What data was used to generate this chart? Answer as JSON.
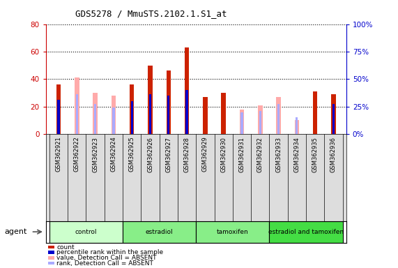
{
  "title": "GDS5278 / MmuSTS.2102.1.S1_at",
  "samples": [
    "GSM362921",
    "GSM362922",
    "GSM362923",
    "GSM362924",
    "GSM362925",
    "GSM362926",
    "GSM362927",
    "GSM362928",
    "GSM362929",
    "GSM362930",
    "GSM362931",
    "GSM362932",
    "GSM362933",
    "GSM362934",
    "GSM362935",
    "GSM362936"
  ],
  "group_defs": [
    {
      "label": "control",
      "start": 0,
      "end": 3,
      "color": "#ccffcc"
    },
    {
      "label": "estradiol",
      "start": 4,
      "end": 7,
      "color": "#88ee88"
    },
    {
      "label": "tamoxifen",
      "start": 8,
      "end": 11,
      "color": "#88ee88"
    },
    {
      "label": "estradiol and tamoxifen",
      "start": 12,
      "end": 15,
      "color": "#44dd44"
    }
  ],
  "count_red": [
    36,
    0,
    0,
    0,
    36,
    50,
    46,
    63,
    27,
    30,
    0,
    0,
    0,
    0,
    31,
    29
  ],
  "count_pink": [
    0,
    41,
    30,
    28,
    0,
    0,
    0,
    0,
    0,
    0,
    18,
    21,
    27,
    10,
    0,
    0
  ],
  "rank_blue": [
    31,
    0,
    0,
    0,
    30,
    36,
    35,
    40,
    0,
    0,
    0,
    0,
    0,
    0,
    0,
    27
  ],
  "rank_lightblue": [
    0,
    36,
    27,
    24,
    0,
    0,
    0,
    0,
    0,
    0,
    20,
    21,
    27,
    15,
    0,
    0
  ],
  "left_ylim": [
    0,
    80
  ],
  "left_yticks": [
    0,
    20,
    40,
    60,
    80
  ],
  "right_ylim": [
    0,
    100
  ],
  "right_yticks": [
    0,
    25,
    50,
    75,
    100
  ],
  "left_ycolor": "#cc0000",
  "right_ycolor": "#0000cc",
  "bar_width": 0.25,
  "bg_color": "#ffffff",
  "plot_bg": "#ffffff",
  "grid_color": "#000000",
  "xticklabel_bg": "#dddddd"
}
